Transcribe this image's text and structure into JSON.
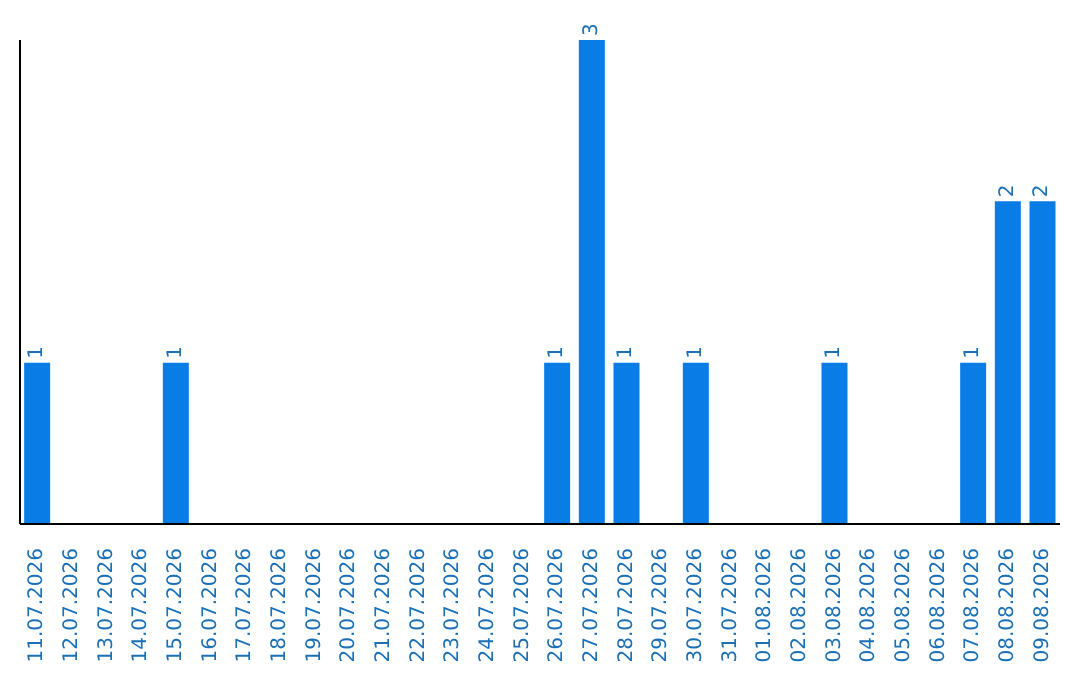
{
  "chart_data": {
    "type": "bar",
    "categories": [
      "11.07.2026",
      "12.07.2026",
      "13.07.2026",
      "14.07.2026",
      "15.07.2026",
      "16.07.2026",
      "17.07.2026",
      "18.07.2026",
      "19.07.2026",
      "20.07.2026",
      "21.07.2026",
      "22.07.2026",
      "23.07.2026",
      "24.07.2026",
      "25.07.2026",
      "26.07.2026",
      "27.07.2026",
      "28.07.2026",
      "29.07.2026",
      "30.07.2026",
      "31.07.2026",
      "01.08.2026",
      "02.08.2026",
      "03.08.2026",
      "04.08.2026",
      "05.08.2026",
      "06.08.2026",
      "07.08.2026",
      "08.08.2026",
      "09.08.2026"
    ],
    "values": [
      1,
      0,
      0,
      0,
      1,
      0,
      0,
      0,
      0,
      0,
      0,
      0,
      0,
      0,
      0,
      1,
      3,
      1,
      0,
      1,
      0,
      0,
      0,
      1,
      0,
      0,
      0,
      1,
      2,
      2
    ],
    "value_labels": [
      "1",
      null,
      null,
      null,
      "1",
      null,
      null,
      null,
      null,
      null,
      null,
      null,
      null,
      null,
      null,
      "1",
      "3",
      "1",
      null,
      "1",
      null,
      null,
      null,
      "1",
      null,
      null,
      null,
      "1",
      "2",
      "2"
    ],
    "color": "#0a7ce6",
    "ylim": [
      0,
      3
    ],
    "tick_labels": "x",
    "grid": false,
    "legend": false
  }
}
